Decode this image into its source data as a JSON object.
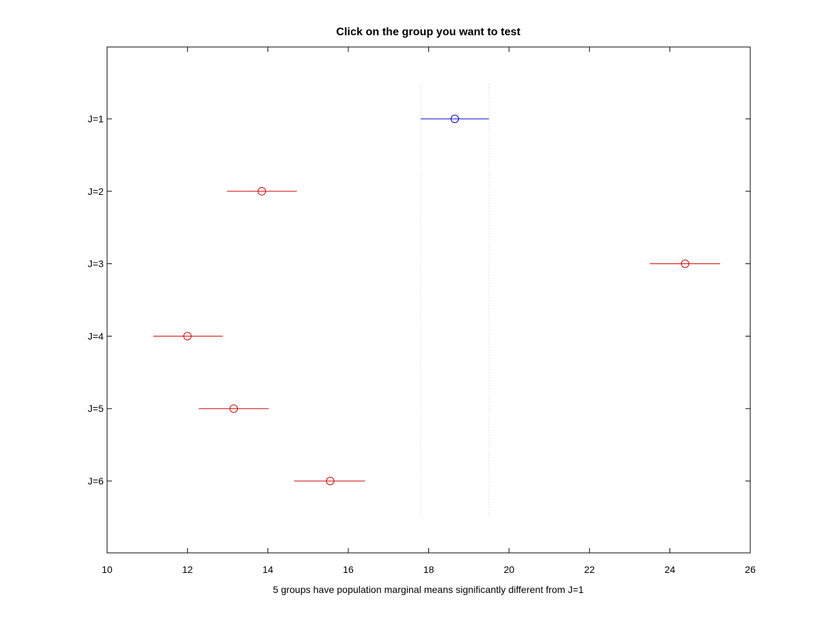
{
  "chart_data": {
    "type": "scatter",
    "title": "Click on the group you want to test",
    "xlabel": "5 groups have population marginal means significantly different from J=1",
    "ylabel": "",
    "xlim": [
      10,
      26
    ],
    "xticks": [
      "10",
      "12",
      "14",
      "16",
      "18",
      "20",
      "22",
      "24",
      "26"
    ],
    "categories": [
      "J=1",
      "J=2",
      "J=3",
      "J=4",
      "J=5",
      "J=6"
    ],
    "groups": [
      {
        "label": "J=1",
        "mean": 18.65,
        "lower": 17.8,
        "upper": 19.5,
        "selected": true
      },
      {
        "label": "J=2",
        "mean": 13.85,
        "lower": 12.98,
        "upper": 14.72,
        "selected": false
      },
      {
        "label": "J=3",
        "mean": 24.38,
        "lower": 23.5,
        "upper": 25.25,
        "selected": false
      },
      {
        "label": "J=4",
        "mean": 12.0,
        "lower": 11.15,
        "upper": 12.88,
        "selected": false
      },
      {
        "label": "J=5",
        "mean": 13.15,
        "lower": 12.28,
        "upper": 14.02,
        "selected": false
      },
      {
        "label": "J=6",
        "mean": 15.55,
        "lower": 14.65,
        "upper": 16.42,
        "selected": false
      }
    ],
    "reference_interval": [
      17.8,
      19.5
    ],
    "grid": false,
    "legend": "none",
    "colors": {
      "selected": "#0000cc",
      "different": "#cc0000",
      "reference_line": "#c8c8c8"
    }
  }
}
